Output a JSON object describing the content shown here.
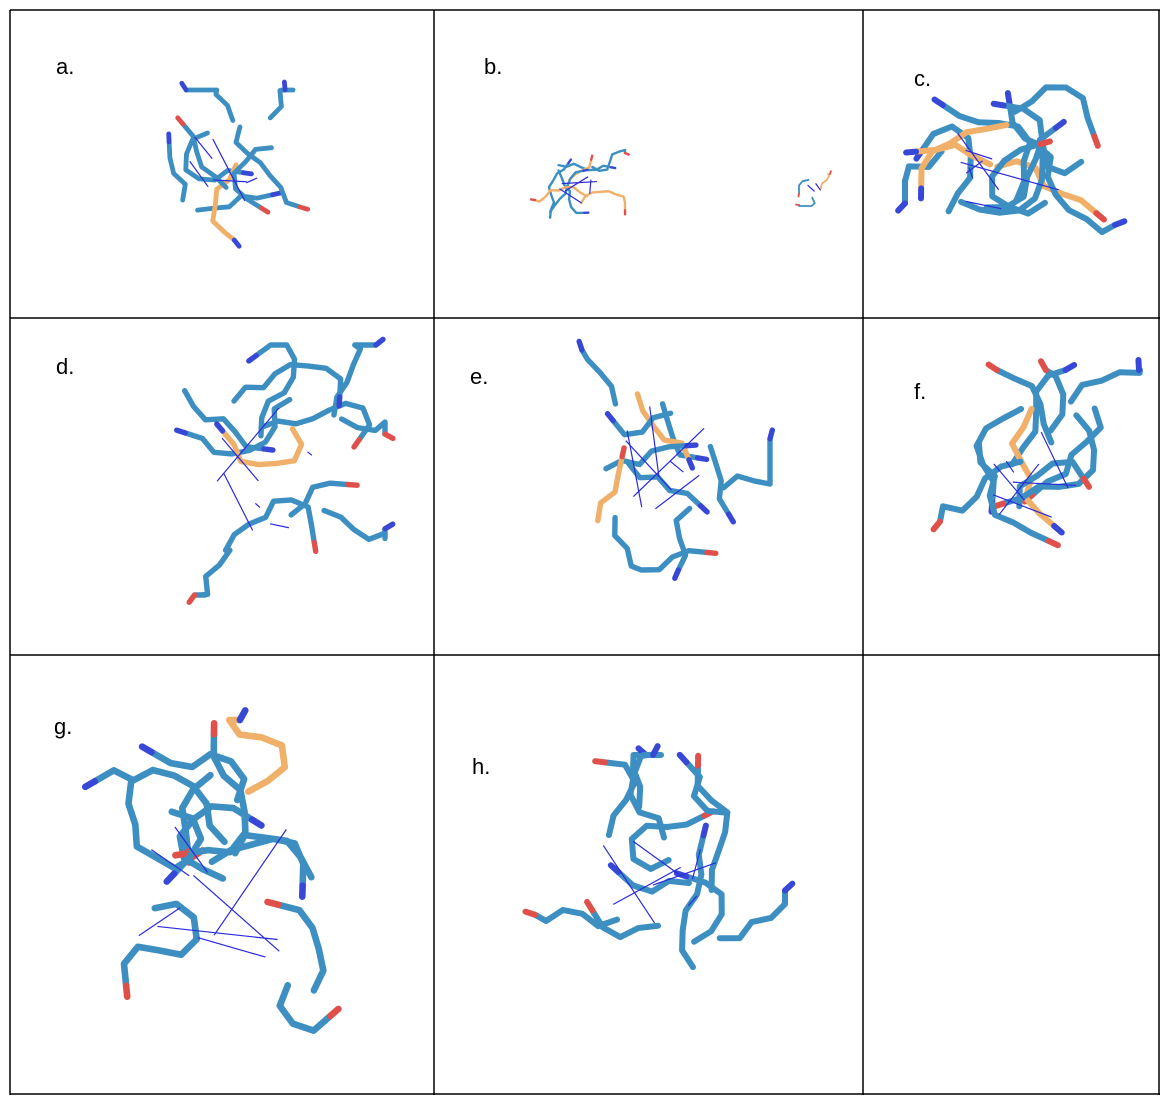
{
  "panels": [
    {
      "label": "a."
    },
    {
      "label": "b."
    },
    {
      "label": "c."
    },
    {
      "label": "d."
    },
    {
      "label": "e."
    },
    {
      "label": "f."
    },
    {
      "label": "g."
    },
    {
      "label": "h."
    }
  ]
}
